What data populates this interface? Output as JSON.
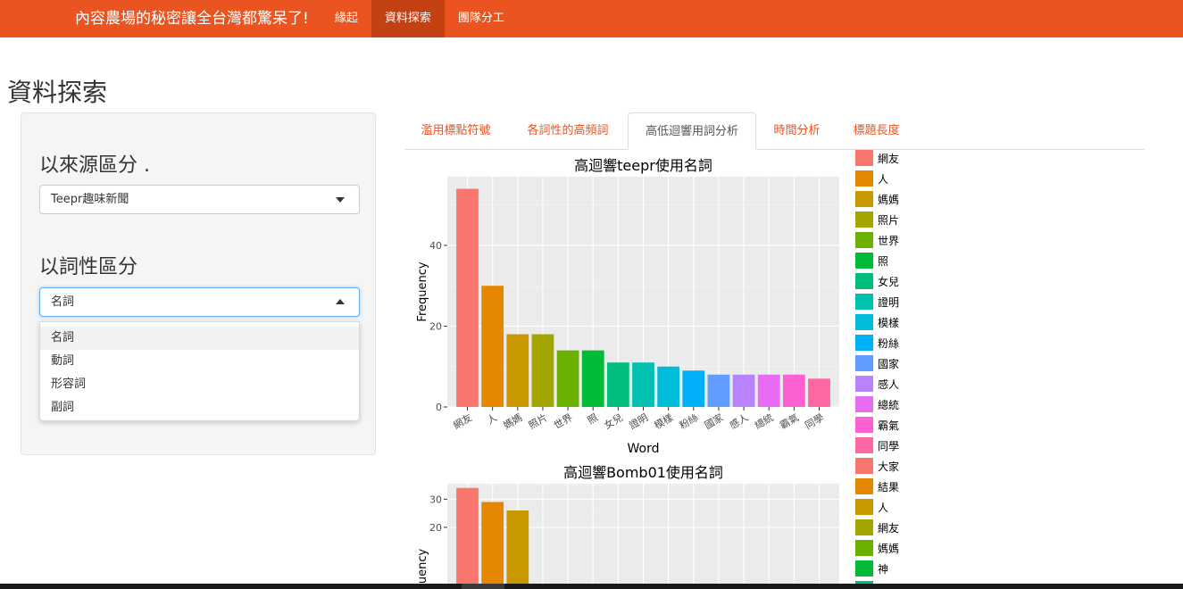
{
  "navbar": {
    "brand": "內容農場的秘密讓全台灣都驚呆了!",
    "items": [
      {
        "label": "緣起",
        "active": false
      },
      {
        "label": "資料探索",
        "active": true
      },
      {
        "label": "團隊分工",
        "active": false
      }
    ]
  },
  "page_title": "資料探索",
  "sidebar": {
    "source_label": "以來源區分 .",
    "source_value": "Teepr趣味新聞",
    "pos_label": "以詞性區分",
    "pos_value": "名詞",
    "pos_options": [
      "名詞",
      "動詞",
      "形容詞",
      "副詞"
    ]
  },
  "tabs": [
    {
      "label": "濫用標點符號",
      "active": false
    },
    {
      "label": "各詞性的高頻詞",
      "active": false
    },
    {
      "label": "高低迴響用詞分析",
      "active": true
    },
    {
      "label": "時間分析",
      "active": false
    },
    {
      "label": "標題長度",
      "active": false
    }
  ],
  "colors": {
    "navbar": "#e95420",
    "navbar_active": "#c34113",
    "tab_text": "#e95420",
    "panel_bg": "#ebebeb"
  },
  "chart_data": [
    {
      "type": "bar",
      "title": "高迴響teepr使用名詞",
      "xlabel": "Word",
      "ylabel": "Frequency",
      "ylim": [
        0,
        57
      ],
      "yticks": [
        0,
        20,
        40
      ],
      "categories": [
        "網友",
        "人",
        "媽媽",
        "照片",
        "世界",
        "照",
        "女兒",
        "證明",
        "模樣",
        "粉絲",
        "國家",
        "感人",
        "總統",
        "霸氣",
        "同學"
      ],
      "values": [
        54,
        30,
        18,
        18,
        14,
        14,
        11,
        11,
        10,
        9,
        8,
        8,
        8,
        8,
        7
      ],
      "colors": [
        "#F8766D",
        "#E58700",
        "#C99800",
        "#A3A500",
        "#6BB100",
        "#00BA38",
        "#00BF7D",
        "#00C0AF",
        "#00BCD8",
        "#00B0F6",
        "#619CFF",
        "#B983FF",
        "#E76BF3",
        "#FD61D1",
        "#FF67A4"
      ],
      "grid": true
    },
    {
      "type": "bar",
      "title": "高迴響Bomb01使用名詞",
      "xlabel": "",
      "ylabel": "Frequency",
      "ylim": [
        0,
        35.5
      ],
      "yticks": [
        20,
        30
      ],
      "categories": [
        "大家",
        "結果",
        "人"
      ],
      "values": [
        34,
        29,
        26
      ],
      "colors": [
        "#F8766D",
        "#E58700",
        "#C99800"
      ],
      "grid": true
    }
  ],
  "legend": {
    "items": [
      {
        "label": "網友",
        "color": "#F8766D"
      },
      {
        "label": "人",
        "color": "#E58700"
      },
      {
        "label": "媽媽",
        "color": "#C99800"
      },
      {
        "label": "照片",
        "color": "#A3A500"
      },
      {
        "label": "世界",
        "color": "#6BB100"
      },
      {
        "label": "照",
        "color": "#00BA38"
      },
      {
        "label": "女兒",
        "color": "#00BF7D"
      },
      {
        "label": "證明",
        "color": "#00C0AF"
      },
      {
        "label": "模樣",
        "color": "#00BCD8"
      },
      {
        "label": "粉絲",
        "color": "#00B0F6"
      },
      {
        "label": "國家",
        "color": "#619CFF"
      },
      {
        "label": "感人",
        "color": "#B983FF"
      },
      {
        "label": "總統",
        "color": "#E76BF3"
      },
      {
        "label": "霸氣",
        "color": "#FD61D1"
      },
      {
        "label": "同學",
        "color": "#FF67A4"
      },
      {
        "label": "大家",
        "color": "#F8766D"
      },
      {
        "label": "結果",
        "color": "#E58700"
      },
      {
        "label": "人",
        "color": "#C99800"
      },
      {
        "label": "網友",
        "color": "#A3A500"
      },
      {
        "label": "媽媽",
        "color": "#6BB100"
      },
      {
        "label": "神",
        "color": "#00BA38"
      },
      {
        "label": "",
        "color": "#00BF7D"
      }
    ]
  }
}
